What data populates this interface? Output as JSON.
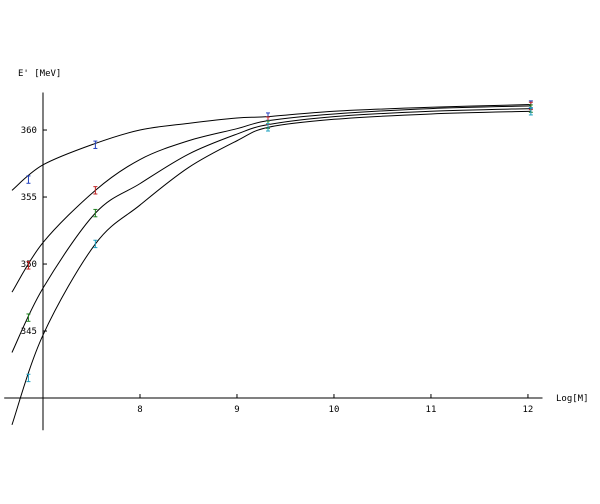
{
  "chart_data": {
    "type": "line",
    "y_label": "E' [MeV]",
    "x_label": "Log[M]",
    "xlim": [
      6.6,
      12.15
    ],
    "ylim": [
      337.6,
      362.8
    ],
    "xticks": [
      8,
      9,
      10,
      11,
      12
    ],
    "yticks": [
      345,
      350,
      355,
      360
    ],
    "origin": [
      7,
      340
    ],
    "x": [
      6.68,
      7,
      7.54,
      8,
      8.5,
      9,
      9.32,
      10,
      11,
      12.03
    ],
    "series": [
      {
        "color": "#000000",
        "values": [
          355.5,
          357.4,
          359.0,
          360.0,
          360.5,
          360.9,
          361.0,
          361.4,
          361.7,
          361.9
        ]
      },
      {
        "color": "#000000",
        "values": [
          347.9,
          351.6,
          355.5,
          357.8,
          359.2,
          360.1,
          360.7,
          361.2,
          361.6,
          361.8
        ]
      },
      {
        "color": "#000000",
        "values": [
          343.4,
          348.2,
          353.8,
          356.0,
          358.2,
          359.7,
          360.4,
          361.0,
          361.4,
          361.6
        ]
      },
      {
        "color": "#000000",
        "values": [
          338.0,
          344.7,
          351.5,
          354.4,
          357.2,
          359.2,
          360.2,
          360.8,
          361.2,
          361.4
        ]
      }
    ],
    "points": {
      "x": [
        6.85,
        7.54,
        9.32,
        12.03
      ],
      "series": [
        {
          "color": "#1f3fbf",
          "values": [
            356.3,
            358.9,
            361.0,
            361.9
          ],
          "errors": [
            0.2,
            0.2,
            0.2,
            0.2
          ]
        },
        {
          "color": "#c02020",
          "values": [
            349.9,
            355.5,
            360.7,
            361.8
          ],
          "errors": [
            0.2,
            0.2,
            0.2,
            0.2
          ]
        },
        {
          "color": "#208020",
          "values": [
            346.0,
            353.8,
            360.4,
            361.6
          ],
          "errors": [
            0.2,
            0.2,
            0.2,
            0.2
          ]
        },
        {
          "color": "#20a0c0",
          "values": [
            341.5,
            351.5,
            360.2,
            361.4
          ],
          "errors": [
            0.2,
            0.2,
            0.2,
            0.2
          ]
        }
      ]
    }
  }
}
